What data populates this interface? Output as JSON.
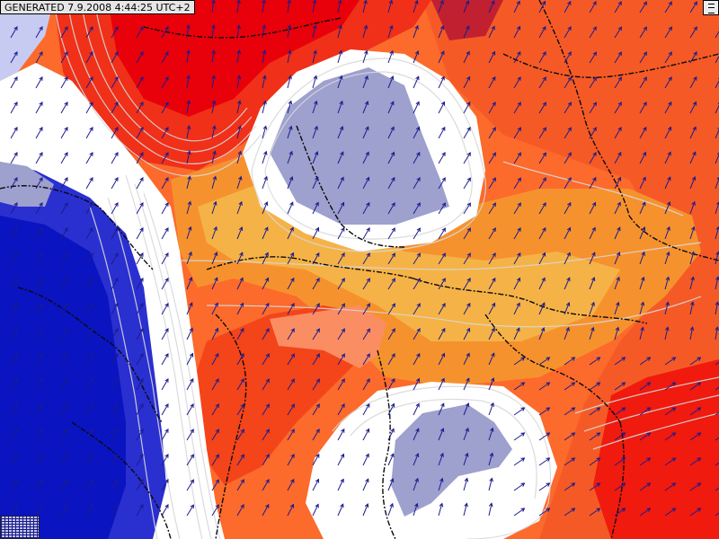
{
  "header": {
    "generated_label": "GENERATED 7.9.2008 4:44:25 UTC+2"
  },
  "map": {
    "type": "weather-field-map",
    "overlay": "wind-vectors",
    "colors": {
      "deep_red": "#e8000a",
      "red": "#f7441c",
      "orange_red": "#fc6a2c",
      "orange": "#f6922e",
      "light_orange": "#f5b347",
      "salmon": "#fa8d62",
      "white": "#ffffff",
      "lavender": "#9ea0ce",
      "light_blue": "#c7cbf2",
      "medium_blue": "#2a2fd0",
      "deep_blue": "#0a14c0",
      "contour": "#cfcfcf",
      "border": "#0a0a0a",
      "arrow": "#1c1c8c"
    }
  },
  "controls": {
    "scroll_icon": "scroll-bars-icon",
    "legend_icon": "legend-grid-icon"
  }
}
